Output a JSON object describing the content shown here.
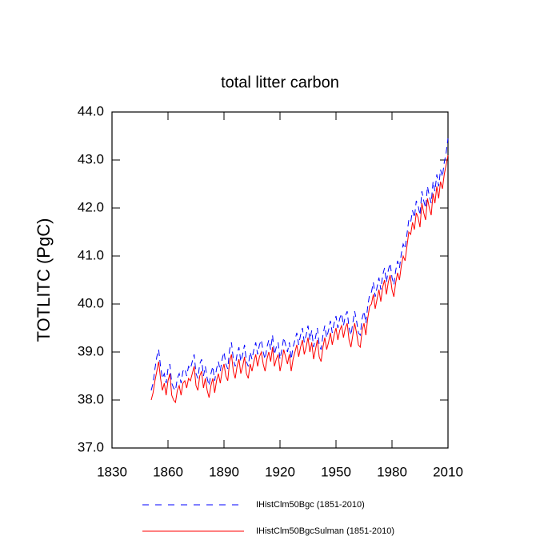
{
  "chart_data": {
    "type": "line",
    "title": "total litter carbon",
    "y_label": "TOTLITC  (PgC)",
    "x": [
      1851,
      1852,
      1853,
      1854,
      1855,
      1856,
      1857,
      1858,
      1859,
      1860,
      1861,
      1862,
      1863,
      1864,
      1865,
      1866,
      1867,
      1868,
      1869,
      1870,
      1871,
      1872,
      1873,
      1874,
      1875,
      1876,
      1877,
      1878,
      1879,
      1880,
      1881,
      1882,
      1883,
      1884,
      1885,
      1886,
      1887,
      1888,
      1889,
      1890,
      1891,
      1892,
      1893,
      1894,
      1895,
      1896,
      1897,
      1898,
      1899,
      1900,
      1901,
      1902,
      1903,
      1904,
      1905,
      1906,
      1907,
      1908,
      1909,
      1910,
      1911,
      1912,
      1913,
      1914,
      1915,
      1916,
      1917,
      1918,
      1919,
      1920,
      1921,
      1922,
      1923,
      1924,
      1925,
      1926,
      1927,
      1928,
      1929,
      1930,
      1931,
      1932,
      1933,
      1934,
      1935,
      1936,
      1937,
      1938,
      1939,
      1940,
      1941,
      1942,
      1943,
      1944,
      1945,
      1946,
      1947,
      1948,
      1949,
      1950,
      1951,
      1952,
      1953,
      1954,
      1955,
      1956,
      1957,
      1958,
      1959,
      1960,
      1961,
      1962,
      1963,
      1964,
      1965,
      1966,
      1967,
      1968,
      1969,
      1970,
      1971,
      1972,
      1973,
      1974,
      1975,
      1976,
      1977,
      1978,
      1979,
      1980,
      1981,
      1982,
      1983,
      1984,
      1985,
      1986,
      1987,
      1988,
      1989,
      1990,
      1991,
      1992,
      1993,
      1994,
      1995,
      1996,
      1997,
      1998,
      1999,
      2000,
      2001,
      2002,
      2003,
      2004,
      2005,
      2006,
      2007,
      2008,
      2009,
      2010
    ],
    "series": [
      {
        "name": "IHistClm50Bgc (1851-2010)",
        "color": "#0000ff",
        "dash": true,
        "values": [
          38.2,
          38.35,
          38.65,
          38.9,
          39.05,
          38.7,
          38.45,
          38.55,
          38.35,
          38.65,
          38.75,
          38.35,
          38.25,
          38.2,
          38.45,
          38.55,
          38.35,
          38.6,
          38.65,
          38.5,
          38.7,
          38.65,
          38.8,
          38.95,
          38.55,
          38.45,
          38.75,
          38.85,
          38.5,
          38.7,
          38.45,
          38.3,
          38.55,
          38.7,
          38.4,
          38.65,
          38.8,
          38.6,
          38.85,
          39.0,
          38.75,
          38.65,
          39.05,
          39.2,
          38.85,
          38.7,
          38.95,
          39.1,
          38.8,
          38.95,
          39.15,
          38.8,
          38.7,
          39.0,
          38.85,
          39.05,
          39.2,
          38.95,
          39.15,
          39.25,
          39.0,
          38.85,
          39.1,
          39.25,
          39.05,
          39.35,
          38.95,
          39.1,
          39.2,
          38.85,
          39.05,
          39.3,
          39.15,
          39.0,
          39.2,
          38.85,
          39.1,
          39.25,
          39.4,
          39.15,
          39.35,
          39.5,
          39.2,
          39.35,
          39.55,
          39.25,
          39.45,
          39.1,
          39.3,
          39.5,
          39.15,
          39.05,
          39.35,
          39.55,
          39.3,
          39.45,
          39.65,
          39.4,
          39.6,
          39.75,
          39.5,
          39.7,
          39.8,
          39.55,
          39.75,
          39.85,
          39.5,
          39.35,
          39.6,
          39.85,
          39.65,
          39.4,
          39.35,
          39.7,
          39.85,
          39.6,
          39.95,
          40.2,
          40.25,
          40.45,
          40.15,
          40.35,
          40.55,
          40.3,
          40.6,
          40.75,
          40.45,
          40.7,
          40.85,
          40.55,
          40.4,
          40.7,
          40.9,
          40.75,
          41.05,
          41.25,
          41.15,
          41.45,
          41.75,
          41.7,
          41.95,
          41.8,
          42.15,
          42.05,
          41.85,
          42.35,
          42.15,
          42.0,
          42.45,
          42.25,
          42.1,
          42.55,
          42.35,
          42.7,
          42.45,
          42.8,
          42.65,
          42.95,
          43.15,
          43.45
        ]
      },
      {
        "name": "IHistClm50BgcSulman (1851-2010)",
        "color": "#ff0000",
        "dash": false,
        "values": [
          38.0,
          38.15,
          38.4,
          38.6,
          38.8,
          38.45,
          38.2,
          38.35,
          38.1,
          38.4,
          38.55,
          38.1,
          38.0,
          37.95,
          38.2,
          38.3,
          38.1,
          38.35,
          38.4,
          38.25,
          38.45,
          38.4,
          38.55,
          38.7,
          38.3,
          38.2,
          38.5,
          38.6,
          38.25,
          38.45,
          38.2,
          38.05,
          38.3,
          38.45,
          38.15,
          38.4,
          38.55,
          38.35,
          38.6,
          38.75,
          38.5,
          38.4,
          38.8,
          38.95,
          38.6,
          38.45,
          38.7,
          38.85,
          38.55,
          38.7,
          38.9,
          38.55,
          38.45,
          38.75,
          38.6,
          38.8,
          38.95,
          38.7,
          38.9,
          39.0,
          38.75,
          38.6,
          38.85,
          39.0,
          38.8,
          39.1,
          38.7,
          38.85,
          38.95,
          38.6,
          38.8,
          39.05,
          38.9,
          38.75,
          38.95,
          38.6,
          38.85,
          39.0,
          39.15,
          38.9,
          39.1,
          39.25,
          38.95,
          39.1,
          39.3,
          39.0,
          39.2,
          38.85,
          39.05,
          39.25,
          38.9,
          38.8,
          39.1,
          39.3,
          39.05,
          39.2,
          39.4,
          39.15,
          39.35,
          39.5,
          39.25,
          39.45,
          39.55,
          39.3,
          39.5,
          39.6,
          39.25,
          39.1,
          39.35,
          39.6,
          39.4,
          39.15,
          39.1,
          39.45,
          39.6,
          39.35,
          39.7,
          39.95,
          40.0,
          40.2,
          39.9,
          40.1,
          40.3,
          40.05,
          40.35,
          40.5,
          40.2,
          40.45,
          40.6,
          40.3,
          40.15,
          40.45,
          40.65,
          40.5,
          40.8,
          41.0,
          40.9,
          41.2,
          41.5,
          41.45,
          41.7,
          41.55,
          41.9,
          41.8,
          41.6,
          42.1,
          41.9,
          41.75,
          42.2,
          42.0,
          41.85,
          42.3,
          42.1,
          42.45,
          42.2,
          42.55,
          42.4,
          42.7,
          42.9,
          43.1
        ]
      }
    ],
    "xlim": [
      1830,
      2010
    ],
    "xticks": [
      1830,
      1860,
      1890,
      1920,
      1950,
      1980,
      2010
    ],
    "ylim": [
      37,
      44
    ],
    "yticks": [
      {
        "value": 37,
        "label": "37.0"
      },
      {
        "value": 38,
        "label": "38.0"
      },
      {
        "value": 39,
        "label": "39.0"
      },
      {
        "value": 40,
        "label": "40.0"
      },
      {
        "value": 41,
        "label": "41.0"
      },
      {
        "value": 42,
        "label": "42.0"
      },
      {
        "value": 43,
        "label": "43.0"
      },
      {
        "value": 44,
        "label": "44.0"
      }
    ],
    "legend": "bottom"
  }
}
